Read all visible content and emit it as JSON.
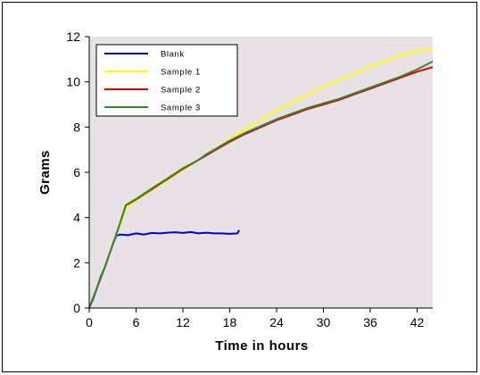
{
  "chart_data": {
    "type": "line",
    "xlabel": "Time in hours",
    "ylabel": "Grams",
    "xlim": [
      0,
      44
    ],
    "ylim": [
      0,
      12
    ],
    "x_ticks": [
      0,
      6,
      12,
      18,
      24,
      30,
      36,
      42
    ],
    "y_ticks": [
      0,
      2,
      4,
      6,
      8,
      10,
      12
    ],
    "plot_background": "#E8E1E6",
    "grid": false,
    "legend_position": "top-left",
    "series": [
      {
        "name": "Blank",
        "color": "#0000CC",
        "points": [
          [
            0,
            0
          ],
          [
            0.5,
            0.4
          ],
          [
            1,
            0.9
          ],
          [
            1.5,
            1.4
          ],
          [
            2,
            1.8
          ],
          [
            2.5,
            2.3
          ],
          [
            3,
            2.8
          ],
          [
            3.5,
            3.2
          ],
          [
            4,
            3.25
          ],
          [
            5,
            3.22
          ],
          [
            6,
            3.3
          ],
          [
            7,
            3.25
          ],
          [
            8,
            3.32
          ],
          [
            9,
            3.3
          ],
          [
            10,
            3.33
          ],
          [
            11,
            3.35
          ],
          [
            12,
            3.32
          ],
          [
            13,
            3.36
          ],
          [
            14,
            3.3
          ],
          [
            15,
            3.33
          ],
          [
            16,
            3.3
          ],
          [
            17,
            3.3
          ],
          [
            18,
            3.28
          ],
          [
            19,
            3.3
          ],
          [
            19.2,
            3.45
          ]
        ]
      },
      {
        "name": "Sample 1",
        "color": "#FFFF00",
        "points": [
          [
            0,
            0
          ],
          [
            1,
            0.9
          ],
          [
            2,
            1.8
          ],
          [
            3,
            2.8
          ],
          [
            4,
            3.7
          ],
          [
            4.7,
            4.4
          ],
          [
            5,
            4.5
          ],
          [
            6,
            4.75
          ],
          [
            8,
            5.2
          ],
          [
            10,
            5.65
          ],
          [
            12,
            6.1
          ],
          [
            14,
            6.55
          ],
          [
            16,
            7.0
          ],
          [
            18,
            7.45
          ],
          [
            20,
            7.9
          ],
          [
            22,
            8.3
          ],
          [
            24,
            8.7
          ],
          [
            26,
            9.05
          ],
          [
            28,
            9.4
          ],
          [
            30,
            9.75
          ],
          [
            32,
            10.05
          ],
          [
            34,
            10.35
          ],
          [
            36,
            10.65
          ],
          [
            38,
            10.9
          ],
          [
            40,
            11.15
          ],
          [
            42,
            11.35
          ],
          [
            44,
            11.45
          ]
        ]
      },
      {
        "name": "Sample 2",
        "color": "#E00000",
        "points": [
          [
            0,
            0
          ],
          [
            1,
            0.9
          ],
          [
            2,
            1.8
          ],
          [
            3,
            2.8
          ],
          [
            4,
            3.8
          ],
          [
            4.7,
            4.55
          ],
          [
            5,
            4.6
          ],
          [
            6,
            4.8
          ],
          [
            8,
            5.25
          ],
          [
            10,
            5.7
          ],
          [
            12,
            6.15
          ],
          [
            14,
            6.55
          ],
          [
            16,
            6.95
          ],
          [
            18,
            7.35
          ],
          [
            20,
            7.7
          ],
          [
            22,
            8.0
          ],
          [
            24,
            8.3
          ],
          [
            26,
            8.55
          ],
          [
            28,
            8.8
          ],
          [
            30,
            9.0
          ],
          [
            32,
            9.2
          ],
          [
            34,
            9.45
          ],
          [
            36,
            9.7
          ],
          [
            38,
            9.95
          ],
          [
            40,
            10.2
          ],
          [
            42,
            10.45
          ],
          [
            44,
            10.65
          ]
        ]
      },
      {
        "name": "Sample 3",
        "color": "#338833",
        "points": [
          [
            0,
            0
          ],
          [
            1,
            0.9
          ],
          [
            2,
            1.8
          ],
          [
            3,
            2.8
          ],
          [
            4,
            3.8
          ],
          [
            4.7,
            4.55
          ],
          [
            5,
            4.62
          ],
          [
            6,
            4.82
          ],
          [
            8,
            5.28
          ],
          [
            10,
            5.72
          ],
          [
            12,
            6.18
          ],
          [
            14,
            6.55
          ],
          [
            15,
            6.8
          ],
          [
            16,
            7.0
          ],
          [
            18,
            7.4
          ],
          [
            20,
            7.75
          ],
          [
            22,
            8.05
          ],
          [
            24,
            8.35
          ],
          [
            26,
            8.6
          ],
          [
            28,
            8.85
          ],
          [
            30,
            9.05
          ],
          [
            32,
            9.25
          ],
          [
            34,
            9.5
          ],
          [
            36,
            9.75
          ],
          [
            38,
            10.0
          ],
          [
            40,
            10.25
          ],
          [
            42,
            10.55
          ],
          [
            44,
            10.9
          ]
        ]
      }
    ]
  }
}
